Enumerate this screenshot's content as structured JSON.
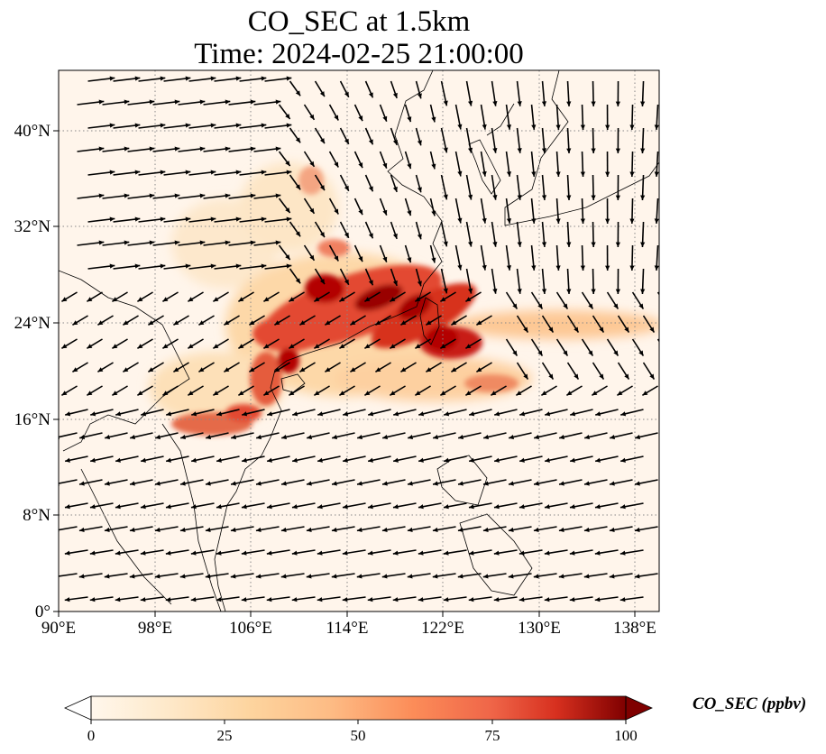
{
  "title": {
    "line1": "CO_SEC at 1.5km",
    "line2": "Time: 2024-02-25 21:00:00"
  },
  "map": {
    "type": "heatmap",
    "variable": "CO_SEC",
    "level": "1.5km",
    "lon_range": [
      90,
      140
    ],
    "lat_range": [
      0,
      45
    ],
    "lon_ticks": [
      "90°E",
      "98°E",
      "106°E",
      "114°E",
      "122°E",
      "130°E",
      "138°E"
    ],
    "lat_ticks": [
      "0°",
      "8°N",
      "16°N",
      "24°N",
      "32°N",
      "40°N"
    ],
    "gridlines": true,
    "wind_vectors": true,
    "colors": {
      "background": "#fff5eb",
      "low": "#fdd49e",
      "mid": "#ef6548",
      "high": "#7f0000",
      "coastline": "#000000",
      "gridline": "#888888"
    }
  },
  "colorbar": {
    "label": "CO_SEC (ppbv)",
    "min": 0,
    "max": 100,
    "ticks": [
      "0",
      "25",
      "50",
      "75",
      "100"
    ],
    "extend": "both",
    "colormap": "OrRd"
  }
}
